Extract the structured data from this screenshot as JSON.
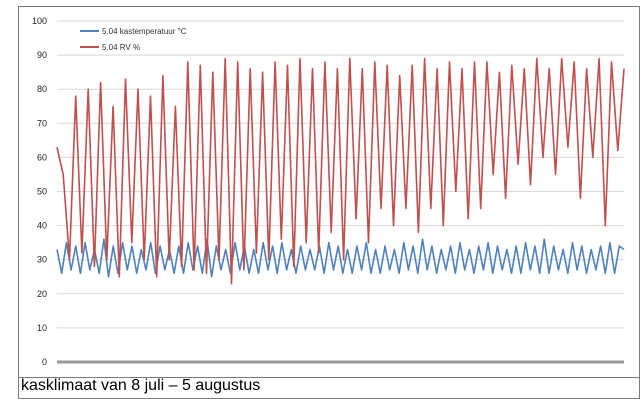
{
  "caption": "kasklimaat van 8 juli – 5 augustus",
  "chart_data": {
    "type": "line",
    "title": "",
    "xlabel": "",
    "ylabel": "",
    "ylim": [
      0,
      100
    ],
    "yticks": [
      0,
      10,
      20,
      30,
      40,
      50,
      60,
      70,
      80,
      90,
      100
    ],
    "grid": "horizontal",
    "legend_position": "top-left",
    "x_range": [
      "8 juli",
      "5 augustus"
    ],
    "series": [
      {
        "name": "5.04 kastemperatuur °C",
        "color": "#4f81bd",
        "values": [
          33,
          26,
          35,
          27,
          34,
          26,
          35,
          27,
          33,
          26,
          36,
          25,
          34,
          26,
          35,
          27,
          34,
          26,
          33,
          27,
          35,
          26,
          34,
          27,
          33,
          26,
          34,
          26,
          35,
          27,
          34,
          26,
          36,
          25,
          34,
          27,
          33,
          26,
          35,
          27,
          34,
          26,
          33,
          26,
          35,
          27,
          34,
          26,
          35,
          27,
          33,
          26,
          34,
          27,
          33,
          27,
          34,
          26,
          35,
          27,
          34,
          26,
          33,
          26,
          34,
          27,
          35,
          26,
          33,
          26,
          34,
          27,
          33,
          26,
          35,
          27,
          34,
          26,
          36,
          27,
          34,
          26,
          33,
          27,
          34,
          26,
          35,
          27,
          33,
          26,
          34,
          27,
          35,
          26,
          34,
          27,
          33,
          26,
          34,
          26,
          35,
          27,
          34,
          26,
          36,
          26,
          34,
          27,
          33,
          26,
          35,
          27,
          34,
          26,
          33,
          27,
          34,
          26,
          35,
          26,
          34,
          33
        ]
      },
      {
        "name": "5.04 RV %",
        "color": "#c0504d",
        "values": [
          63,
          55,
          30,
          78,
          32,
          80,
          28,
          82,
          30,
          75,
          25,
          83,
          35,
          80,
          30,
          78,
          25,
          84,
          30,
          75,
          28,
          88,
          27,
          87,
          26,
          85,
          30,
          89,
          23,
          88,
          27,
          86,
          32,
          85,
          30,
          88,
          36,
          87,
          28,
          89,
          35,
          86,
          32,
          88,
          38,
          86,
          30,
          89,
          42,
          86,
          35,
          88,
          45,
          87,
          40,
          84,
          45,
          87,
          38,
          89,
          45,
          86,
          40,
          88,
          50,
          86,
          42,
          88,
          45,
          88,
          55,
          85,
          48,
          87,
          58,
          86,
          52,
          89,
          60,
          86,
          55,
          89,
          63,
          88,
          48,
          86,
          60,
          89,
          40,
          88,
          62,
          86
        ]
      }
    ]
  }
}
